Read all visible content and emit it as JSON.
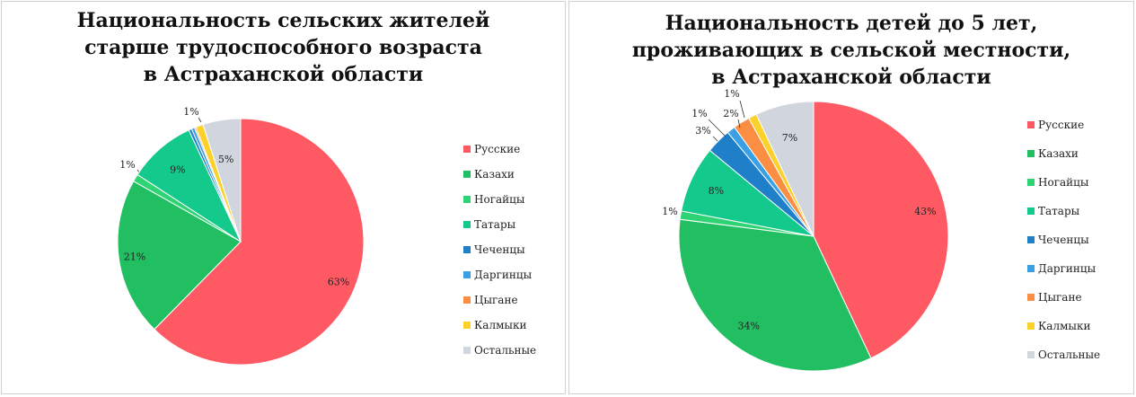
{
  "colors": {
    "russians": "#FF5A64",
    "kazakhs": "#21BF62",
    "nogais": "#2ED373",
    "tatars": "#14C98C",
    "chechens": "#1F7FC9",
    "dargins": "#3AA0E6",
    "gypsies": "#FB8E43",
    "kalmyks": "#FCD12A",
    "others": "#D1D6DE"
  },
  "chart_data": [
    {
      "type": "pie",
      "title_lines": [
        "Национальность сельских жителей",
        "старше трудоспособного возраста",
        "в Астраханской области"
      ],
      "legend_position": "right",
      "slices": [
        {
          "name": "Русские",
          "value": 63,
          "label": "63%"
        },
        {
          "name": "Казахи",
          "value": 21,
          "label": "21%"
        },
        {
          "name": "Ногайцы",
          "value": 1,
          "label": "1%"
        },
        {
          "name": "Татары",
          "value": 9,
          "label": "9%"
        },
        {
          "name": "Чеченцы",
          "value": 0.4,
          "label": ""
        },
        {
          "name": "Даргинцы",
          "value": 0.4,
          "label": ""
        },
        {
          "name": "Цыгане",
          "value": 0.2,
          "label": ""
        },
        {
          "name": "Калмыки",
          "value": 1,
          "label": "1%"
        },
        {
          "name": "Остальные",
          "value": 5,
          "label": "5%"
        }
      ]
    },
    {
      "type": "pie",
      "title_lines": [
        "Национальность детей до 5 лет,",
        "проживающих в сельской местности,",
        "в Астраханской области"
      ],
      "legend_position": "right",
      "slices": [
        {
          "name": "Русские",
          "value": 43,
          "label": "43%"
        },
        {
          "name": "Казахи",
          "value": 34,
          "label": "34%"
        },
        {
          "name": "Ногайцы",
          "value": 1,
          "label": "1%"
        },
        {
          "name": "Татары",
          "value": 8,
          "label": "8%"
        },
        {
          "name": "Чеченцы",
          "value": 3,
          "label": "3%"
        },
        {
          "name": "Даргинцы",
          "value": 1,
          "label": "1%"
        },
        {
          "name": "Цыгане",
          "value": 2,
          "label": "2%"
        },
        {
          "name": "Калмыки",
          "value": 1,
          "label": "1%"
        },
        {
          "name": "Остальные",
          "value": 7,
          "label": "7%"
        }
      ]
    }
  ]
}
